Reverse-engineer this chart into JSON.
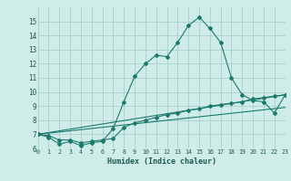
{
  "background_color": "#d0ece8",
  "grid_color": "#a0ccc8",
  "line_color": "#1a7a6e",
  "marker_color": "#1a7a6e",
  "series1_x": [
    0,
    1,
    2,
    3,
    4,
    5,
    6,
    7,
    8,
    9,
    10,
    11,
    12,
    13,
    14,
    15,
    16,
    17,
    18,
    19,
    20,
    21,
    22,
    23
  ],
  "series1_y": [
    7.0,
    6.8,
    6.3,
    6.5,
    6.2,
    6.4,
    6.5,
    7.4,
    9.3,
    11.1,
    12.0,
    12.6,
    12.5,
    13.5,
    14.7,
    15.3,
    14.5,
    13.5,
    11.0,
    9.8,
    9.4,
    9.3,
    8.5,
    9.8
  ],
  "series2_x": [
    0,
    1,
    2,
    3,
    4,
    5,
    6,
    7,
    8,
    9,
    10,
    11,
    12,
    13,
    14,
    15,
    16,
    17,
    18,
    19,
    20,
    21,
    22,
    23
  ],
  "series2_y": [
    7.0,
    6.9,
    6.6,
    6.6,
    6.4,
    6.5,
    6.6,
    6.7,
    7.5,
    7.8,
    8.0,
    8.2,
    8.4,
    8.5,
    8.7,
    8.8,
    9.0,
    9.1,
    9.2,
    9.3,
    9.5,
    9.6,
    9.7,
    9.8
  ],
  "series3_x": [
    0,
    23
  ],
  "series3_y": [
    7.0,
    9.8
  ],
  "series4_x": [
    0,
    23
  ],
  "series4_y": [
    7.0,
    8.9
  ],
  "xlabel": "Humidex (Indice chaleur)",
  "xlim": [
    0,
    23
  ],
  "ylim": [
    6,
    16
  ],
  "yticks": [
    6,
    7,
    8,
    9,
    10,
    11,
    12,
    13,
    14,
    15
  ],
  "xticks": [
    0,
    1,
    2,
    3,
    4,
    5,
    6,
    7,
    8,
    9,
    10,
    11,
    12,
    13,
    14,
    15,
    16,
    17,
    18,
    19,
    20,
    21,
    22,
    23
  ],
  "tick_color": "#1a5a50",
  "xlabel_fontsize": 6.0,
  "ytick_fontsize": 5.5,
  "xtick_fontsize": 4.8
}
